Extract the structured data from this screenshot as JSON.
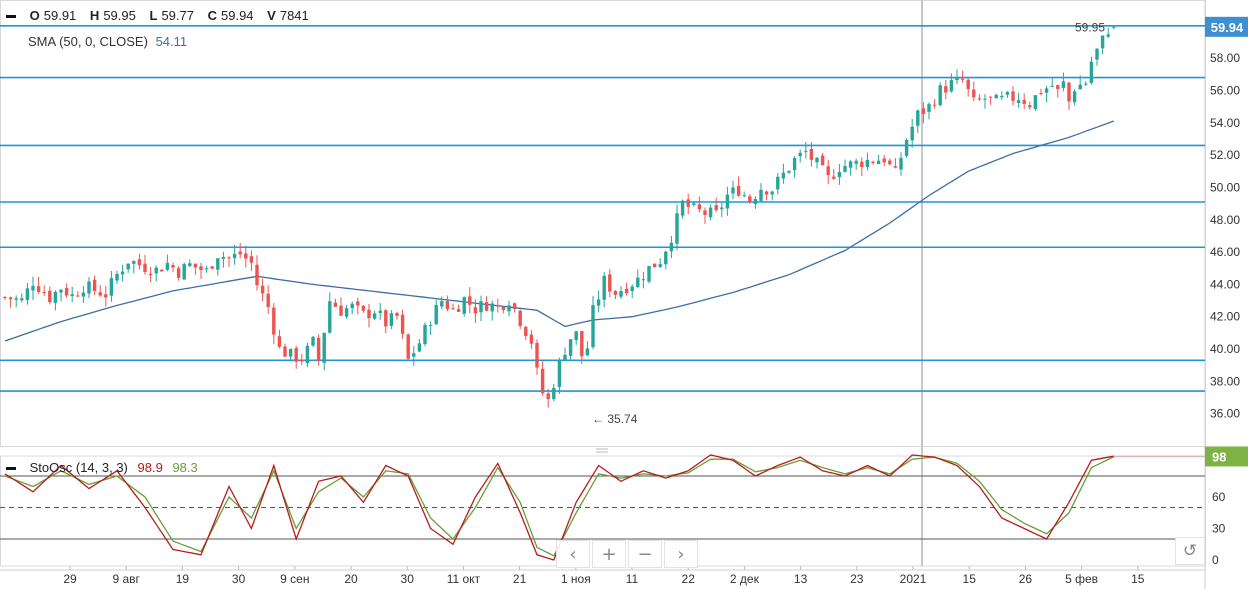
{
  "ohlc_legend": {
    "open_label": "O",
    "open": "59.91",
    "high_label": "H",
    "high": "59.95",
    "low_label": "L",
    "low": "59.77",
    "close_label": "C",
    "close": "59.94",
    "volume_label": "V",
    "volume": "7841"
  },
  "sma_legend": {
    "label": "SMA (50, 0, CLOSE)",
    "value": "54.11"
  },
  "stoch_legend": {
    "label": "StoOsc (14, 3, 3)",
    "k_value": "98.9",
    "d_value": "98.3"
  },
  "last_price_tag": "59.94",
  "stoch_tag": "98",
  "high_annotation": "59.95",
  "low_annotation": "35.74",
  "navigation": {
    "prev": "‹",
    "zoom_in": "+",
    "zoom_out": "−",
    "next": "›",
    "reset": "↺"
  },
  "colors": {
    "up": "#26a69a",
    "down": "#ef5350",
    "sma": "#3a6fa6",
    "hline": "#1e96d8",
    "stoch_k": "#b71c1c",
    "stoch_d": "#689f38",
    "price_tag": "#3d8fd1",
    "stoch_tag": "#7cb342"
  },
  "chart_data": {
    "type": "candlestick",
    "price_axis": {
      "ticks": [
        "36.00",
        "38.00",
        "40.00",
        "42.00",
        "44.00",
        "46.00",
        "48.00",
        "50.00",
        "52.00",
        "54.00",
        "56.00",
        "58.00"
      ],
      "range": [
        34.0,
        61.6
      ]
    },
    "time_axis": {
      "ticks": [
        "29",
        "9 авг",
        "19",
        "30",
        "9 сен",
        "20",
        "30",
        "11 окт",
        "21",
        "1 ноя",
        "11",
        "22",
        "2 дек",
        "13",
        "23",
        "2021",
        "15",
        "26",
        "5 фев",
        "15"
      ]
    },
    "horizontal_levels": [
      60.0,
      56.8,
      52.6,
      49.1,
      46.3,
      39.3,
      37.4
    ],
    "close_path": [
      [
        0,
        43.2
      ],
      [
        3,
        43.0
      ],
      [
        5,
        44.2
      ],
      [
        8,
        43.2
      ],
      [
        10,
        43.8
      ],
      [
        12,
        43.3
      ],
      [
        14,
        43.9
      ],
      [
        18,
        43.4
      ],
      [
        20,
        44.6
      ],
      [
        22,
        45.5
      ],
      [
        25,
        45.1
      ],
      [
        27,
        44.9
      ],
      [
        29,
        45.3
      ],
      [
        31,
        44.8
      ],
      [
        33,
        45.2
      ],
      [
        36,
        44.8
      ],
      [
        38,
        45.9
      ],
      [
        40,
        45.6
      ],
      [
        42,
        45.9
      ],
      [
        44,
        45.3
      ],
      [
        45,
        44.0
      ],
      [
        47,
        42.6
      ],
      [
        49,
        40.0
      ],
      [
        51,
        39.6
      ],
      [
        53,
        39.4
      ],
      [
        55,
        40.4
      ],
      [
        56,
        39.3
      ],
      [
        58,
        43.0
      ],
      [
        60,
        42.4
      ],
      [
        62,
        42.6
      ],
      [
        64,
        42.1
      ],
      [
        66,
        42.4
      ],
      [
        68,
        41.6
      ],
      [
        70,
        42.0
      ],
      [
        72,
        39.3
      ],
      [
        74,
        40.4
      ],
      [
        76,
        41.9
      ],
      [
        78,
        43.0
      ],
      [
        80,
        42.4
      ],
      [
        82,
        43.1
      ],
      [
        84,
        42.5
      ],
      [
        86,
        42.8
      ],
      [
        88,
        42.6
      ],
      [
        90,
        43.1
      ],
      [
        92,
        41.8
      ],
      [
        94,
        40.5
      ],
      [
        95,
        38.5
      ],
      [
        96,
        37.3
      ],
      [
        97,
        36.8
      ],
      [
        99,
        39.1
      ],
      [
        100,
        40.0
      ],
      [
        101,
        40.7
      ],
      [
        102,
        40.9
      ],
      [
        103,
        39.6
      ],
      [
        104,
        40.1
      ],
      [
        105,
        42.3
      ],
      [
        107,
        44.2
      ],
      [
        109,
        43.5
      ],
      [
        111,
        43.9
      ],
      [
        113,
        44.3
      ],
      [
        115,
        45.0
      ],
      [
        117,
        45.5
      ],
      [
        119,
        47.0
      ],
      [
        121,
        49.0
      ],
      [
        123,
        48.6
      ],
      [
        125,
        48.4
      ],
      [
        127,
        48.3
      ],
      [
        129,
        49.5
      ],
      [
        131,
        49.9
      ],
      [
        133,
        49.2
      ],
      [
        135,
        50.0
      ],
      [
        137,
        49.9
      ],
      [
        139,
        50.8
      ],
      [
        141,
        51.7
      ],
      [
        143,
        52.2
      ],
      [
        145,
        51.4
      ],
      [
        147,
        50.5
      ],
      [
        149,
        51.3
      ],
      [
        151,
        51.4
      ],
      [
        153,
        51.6
      ],
      [
        155,
        51.7
      ],
      [
        157,
        51.8
      ],
      [
        159,
        50.8
      ],
      [
        161,
        53.0
      ],
      [
        163,
        54.5
      ],
      [
        165,
        55.0
      ],
      [
        167,
        56.0
      ],
      [
        169,
        56.4
      ],
      [
        171,
        56.6
      ],
      [
        173,
        55.2
      ],
      [
        175,
        55.5
      ],
      [
        177,
        55.3
      ],
      [
        179,
        55.5
      ],
      [
        181,
        55.6
      ],
      [
        183,
        55.2
      ],
      [
        185,
        56.0
      ],
      [
        187,
        56.3
      ],
      [
        188,
        55.9
      ],
      [
        189,
        56.4
      ],
      [
        190,
        55.3
      ],
      [
        191,
        56.2
      ],
      [
        193,
        56.5
      ],
      [
        194,
        57.8
      ],
      [
        196,
        59.1
      ],
      [
        197,
        59.8
      ],
      [
        198,
        59.94
      ]
    ],
    "sma_path": [
      [
        0,
        40.5
      ],
      [
        10,
        41.7
      ],
      [
        20,
        42.7
      ],
      [
        30,
        43.6
      ],
      [
        40,
        44.2
      ],
      [
        45,
        44.5
      ],
      [
        55,
        44.0
      ],
      [
        65,
        43.6
      ],
      [
        75,
        43.2
      ],
      [
        85,
        42.8
      ],
      [
        95,
        42.4
      ],
      [
        100,
        41.4
      ],
      [
        105,
        41.8
      ],
      [
        112,
        42.0
      ],
      [
        120,
        42.6
      ],
      [
        130,
        43.5
      ],
      [
        140,
        44.6
      ],
      [
        150,
        46.1
      ],
      [
        158,
        47.8
      ],
      [
        165,
        49.5
      ],
      [
        172,
        51.0
      ],
      [
        180,
        52.1
      ],
      [
        190,
        53.1
      ],
      [
        198,
        54.11
      ]
    ],
    "stochastic": {
      "levels": [
        80,
        50,
        20
      ],
      "axis_ticks": [
        "0",
        "30",
        "60"
      ],
      "k_path": [
        [
          0,
          82
        ],
        [
          5,
          65
        ],
        [
          10,
          90
        ],
        [
          15,
          68
        ],
        [
          20,
          85
        ],
        [
          25,
          50
        ],
        [
          30,
          10
        ],
        [
          35,
          5
        ],
        [
          40,
          70
        ],
        [
          44,
          30
        ],
        [
          48,
          90
        ],
        [
          52,
          20
        ],
        [
          56,
          75
        ],
        [
          60,
          80
        ],
        [
          64,
          55
        ],
        [
          68,
          90
        ],
        [
          72,
          80
        ],
        [
          76,
          30
        ],
        [
          80,
          15
        ],
        [
          84,
          60
        ],
        [
          88,
          92
        ],
        [
          92,
          45
        ],
        [
          95,
          5
        ],
        [
          98,
          0
        ],
        [
          102,
          55
        ],
        [
          106,
          90
        ],
        [
          110,
          75
        ],
        [
          114,
          85
        ],
        [
          118,
          78
        ],
        [
          122,
          85
        ],
        [
          126,
          100
        ],
        [
          130,
          95
        ],
        [
          134,
          80
        ],
        [
          138,
          90
        ],
        [
          142,
          98
        ],
        [
          146,
          85
        ],
        [
          150,
          80
        ],
        [
          154,
          90
        ],
        [
          158,
          80
        ],
        [
          162,
          100
        ],
        [
          166,
          98
        ],
        [
          170,
          90
        ],
        [
          174,
          70
        ],
        [
          178,
          40
        ],
        [
          182,
          30
        ],
        [
          186,
          20
        ],
        [
          190,
          55
        ],
        [
          194,
          95
        ],
        [
          198,
          98.9
        ]
      ],
      "d_path": [
        [
          0,
          80
        ],
        [
          5,
          70
        ],
        [
          10,
          85
        ],
        [
          15,
          72
        ],
        [
          20,
          80
        ],
        [
          25,
          60
        ],
        [
          30,
          18
        ],
        [
          35,
          8
        ],
        [
          40,
          60
        ],
        [
          44,
          40
        ],
        [
          48,
          85
        ],
        [
          52,
          30
        ],
        [
          56,
          65
        ],
        [
          60,
          78
        ],
        [
          64,
          60
        ],
        [
          68,
          85
        ],
        [
          72,
          82
        ],
        [
          76,
          40
        ],
        [
          80,
          20
        ],
        [
          84,
          50
        ],
        [
          88,
          88
        ],
        [
          92,
          55
        ],
        [
          95,
          12
        ],
        [
          98,
          4
        ],
        [
          102,
          45
        ],
        [
          106,
          82
        ],
        [
          110,
          78
        ],
        [
          114,
          82
        ],
        [
          118,
          80
        ],
        [
          122,
          83
        ],
        [
          126,
          96
        ],
        [
          130,
          96
        ],
        [
          134,
          84
        ],
        [
          138,
          88
        ],
        [
          142,
          95
        ],
        [
          146,
          88
        ],
        [
          150,
          82
        ],
        [
          154,
          88
        ],
        [
          158,
          82
        ],
        [
          162,
          96
        ],
        [
          166,
          98
        ],
        [
          170,
          92
        ],
        [
          174,
          75
        ],
        [
          178,
          48
        ],
        [
          182,
          35
        ],
        [
          186,
          25
        ],
        [
          190,
          45
        ],
        [
          194,
          88
        ],
        [
          198,
          98.3
        ]
      ]
    }
  }
}
